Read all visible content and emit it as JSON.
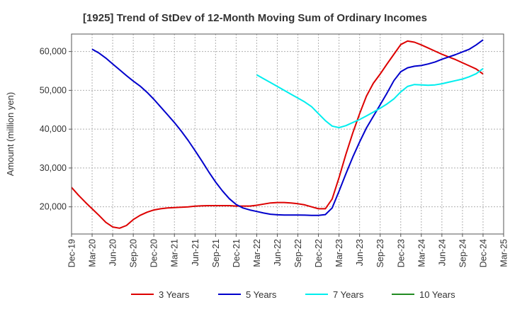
{
  "chart_data": {
    "type": "line",
    "title": "[1925]  Trend of StDev of 12-Month Moving Sum of Ordinary Incomes",
    "xlabel": "",
    "ylabel": "Amount (million yen)",
    "x_ticks": [
      "Dec-19",
      "Mar-20",
      "Jun-20",
      "Sep-20",
      "Dec-20",
      "Mar-21",
      "Jun-21",
      "Sep-21",
      "Dec-21",
      "Mar-22",
      "Jun-22",
      "Sep-22",
      "Dec-22",
      "Mar-23",
      "Jun-23",
      "Sep-23",
      "Dec-23",
      "Mar-24",
      "Jun-24",
      "Sep-24",
      "Dec-24",
      "Mar-25"
    ],
    "y_ticks": [
      20000,
      30000,
      40000,
      50000,
      60000
    ],
    "y_tick_labels": [
      "20,000",
      "30,000",
      "40,000",
      "50,000",
      "60,000"
    ],
    "xlim": [
      "2019-12",
      "2025-03"
    ],
    "ylim": [
      13000,
      64500
    ],
    "grid": true,
    "legend_position": "bottom",
    "series": [
      {
        "name": "3 Years",
        "color": "#dd0000",
        "points": [
          [
            "2019-12",
            25000
          ],
          [
            "2020-01",
            23000
          ],
          [
            "2020-02",
            21200
          ],
          [
            "2020-03",
            19500
          ],
          [
            "2020-04",
            17800
          ],
          [
            "2020-05",
            16000
          ],
          [
            "2020-06",
            14800
          ],
          [
            "2020-07",
            14500
          ],
          [
            "2020-08",
            15200
          ],
          [
            "2020-09",
            16700
          ],
          [
            "2020-10",
            17800
          ],
          [
            "2020-11",
            18600
          ],
          [
            "2020-12",
            19200
          ],
          [
            "2021-01",
            19500
          ],
          [
            "2021-02",
            19700
          ],
          [
            "2021-03",
            19800
          ],
          [
            "2021-04",
            19900
          ],
          [
            "2021-05",
            20000
          ],
          [
            "2021-06",
            20150
          ],
          [
            "2021-07",
            20250
          ],
          [
            "2021-08",
            20300
          ],
          [
            "2021-09",
            20300
          ],
          [
            "2021-10",
            20300
          ],
          [
            "2021-11",
            20300
          ],
          [
            "2021-12",
            20200
          ],
          [
            "2022-01",
            20200
          ],
          [
            "2022-02",
            20200
          ],
          [
            "2022-03",
            20400
          ],
          [
            "2022-04",
            20700
          ],
          [
            "2022-05",
            21000
          ],
          [
            "2022-06",
            21100
          ],
          [
            "2022-07",
            21100
          ],
          [
            "2022-08",
            21000
          ],
          [
            "2022-09",
            20800
          ],
          [
            "2022-10",
            20500
          ],
          [
            "2022-11",
            20000
          ],
          [
            "2022-12",
            19500
          ],
          [
            "2023-01",
            19500
          ],
          [
            "2023-02",
            22000
          ],
          [
            "2023-03",
            27500
          ],
          [
            "2023-04",
            33500
          ],
          [
            "2023-05",
            39000
          ],
          [
            "2023-06",
            44000
          ],
          [
            "2023-07",
            48500
          ],
          [
            "2023-08",
            51800
          ],
          [
            "2023-09",
            54200
          ],
          [
            "2023-10",
            56800
          ],
          [
            "2023-11",
            59300
          ],
          [
            "2023-12",
            61800
          ],
          [
            "2024-01",
            62700
          ],
          [
            "2024-02",
            62400
          ],
          [
            "2024-03",
            61700
          ],
          [
            "2024-04",
            60900
          ],
          [
            "2024-05",
            60100
          ],
          [
            "2024-06",
            59300
          ],
          [
            "2024-07",
            58600
          ],
          [
            "2024-08",
            57900
          ],
          [
            "2024-09",
            57100
          ],
          [
            "2024-10",
            56300
          ],
          [
            "2024-11",
            55500
          ],
          [
            "2024-12",
            54200
          ]
        ]
      },
      {
        "name": "5 Years",
        "color": "#0000cc",
        "points": [
          [
            "2020-03",
            60600
          ],
          [
            "2020-04",
            59600
          ],
          [
            "2020-05",
            58300
          ],
          [
            "2020-06",
            56800
          ],
          [
            "2020-07",
            55300
          ],
          [
            "2020-08",
            53800
          ],
          [
            "2020-09",
            52400
          ],
          [
            "2020-10",
            51100
          ],
          [
            "2020-11",
            49500
          ],
          [
            "2020-12",
            47700
          ],
          [
            "2021-01",
            45700
          ],
          [
            "2021-02",
            43700
          ],
          [
            "2021-03",
            41700
          ],
          [
            "2021-04",
            39500
          ],
          [
            "2021-05",
            37100
          ],
          [
            "2021-06",
            34500
          ],
          [
            "2021-07",
            31800
          ],
          [
            "2021-08",
            29000
          ],
          [
            "2021-09",
            26400
          ],
          [
            "2021-10",
            24100
          ],
          [
            "2021-11",
            22100
          ],
          [
            "2021-12",
            20600
          ],
          [
            "2022-01",
            19700
          ],
          [
            "2022-02",
            19200
          ],
          [
            "2022-03",
            18800
          ],
          [
            "2022-04",
            18400
          ],
          [
            "2022-05",
            18100
          ],
          [
            "2022-06",
            17950
          ],
          [
            "2022-07",
            17900
          ],
          [
            "2022-08",
            17900
          ],
          [
            "2022-09",
            17900
          ],
          [
            "2022-10",
            17850
          ],
          [
            "2022-11",
            17800
          ],
          [
            "2022-12",
            17800
          ],
          [
            "2023-01",
            18000
          ],
          [
            "2023-02",
            19700
          ],
          [
            "2023-03",
            24000
          ],
          [
            "2023-04",
            28500
          ],
          [
            "2023-05",
            32800
          ],
          [
            "2023-06",
            36700
          ],
          [
            "2023-07",
            40300
          ],
          [
            "2023-08",
            43300
          ],
          [
            "2023-09",
            46300
          ],
          [
            "2023-10",
            49300
          ],
          [
            "2023-11",
            52500
          ],
          [
            "2023-12",
            54800
          ],
          [
            "2024-01",
            55800
          ],
          [
            "2024-02",
            56200
          ],
          [
            "2024-03",
            56400
          ],
          [
            "2024-04",
            56800
          ],
          [
            "2024-05",
            57300
          ],
          [
            "2024-06",
            58000
          ],
          [
            "2024-07",
            58600
          ],
          [
            "2024-08",
            59200
          ],
          [
            "2024-09",
            59900
          ],
          [
            "2024-10",
            60600
          ],
          [
            "2024-11",
            61700
          ],
          [
            "2024-12",
            63000
          ]
        ]
      },
      {
        "name": "7 Years",
        "color": "#00eeee",
        "points": [
          [
            "2022-03",
            54000
          ],
          [
            "2022-04",
            53000
          ],
          [
            "2022-05",
            52000
          ],
          [
            "2022-06",
            51000
          ],
          [
            "2022-07",
            50000
          ],
          [
            "2022-08",
            49000
          ],
          [
            "2022-09",
            48000
          ],
          [
            "2022-10",
            47000
          ],
          [
            "2022-11",
            45800
          ],
          [
            "2022-12",
            44000
          ],
          [
            "2023-01",
            42200
          ],
          [
            "2023-02",
            40800
          ],
          [
            "2023-03",
            40400
          ],
          [
            "2023-04",
            40900
          ],
          [
            "2023-05",
            41700
          ],
          [
            "2023-06",
            42500
          ],
          [
            "2023-07",
            43400
          ],
          [
            "2023-08",
            44400
          ],
          [
            "2023-09",
            45400
          ],
          [
            "2023-10",
            46500
          ],
          [
            "2023-11",
            47800
          ],
          [
            "2023-12",
            49600
          ],
          [
            "2024-01",
            51000
          ],
          [
            "2024-02",
            51500
          ],
          [
            "2024-03",
            51400
          ],
          [
            "2024-04",
            51300
          ],
          [
            "2024-05",
            51400
          ],
          [
            "2024-06",
            51700
          ],
          [
            "2024-07",
            52100
          ],
          [
            "2024-08",
            52500
          ],
          [
            "2024-09",
            52900
          ],
          [
            "2024-10",
            53500
          ],
          [
            "2024-11",
            54300
          ],
          [
            "2024-12",
            55600
          ]
        ]
      },
      {
        "name": "10 Years",
        "color": "#228B22",
        "points": []
      }
    ]
  }
}
